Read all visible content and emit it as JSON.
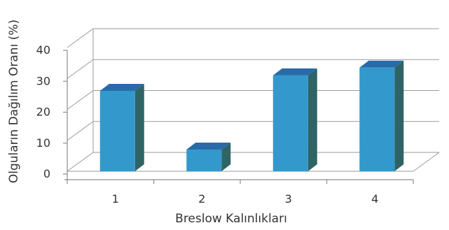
{
  "chart_data": {
    "type": "bar",
    "categories": [
      "1",
      "2",
      "3",
      "4"
    ],
    "values": [
      26,
      7,
      31,
      33.5
    ],
    "xlabel": "Breslow Kalınlıkları",
    "ylabel": "Olguların Dağılım Oranı (%)",
    "ylim": [
      0,
      40
    ],
    "yticks": [
      "0",
      "10",
      "20",
      "30",
      "40"
    ],
    "grid": true,
    "legend": "none",
    "colors": {
      "bar_front": "#3399cc",
      "bar_top": "#2a6aa8",
      "bar_side": "#2e6466"
    }
  }
}
